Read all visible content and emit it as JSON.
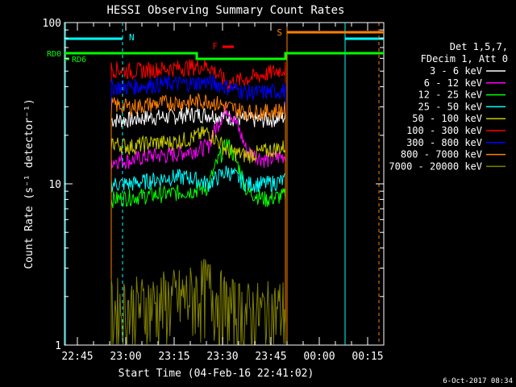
{
  "chart_data": {
    "type": "line",
    "title": "HESSI Observing Summary Count Rates",
    "xlabel": "Start Time (04-Feb-16 22:41:02)",
    "ylabel": "Count Rate (s⁻¹ detector⁻¹)",
    "yscale": "log",
    "ylim": [
      1,
      100
    ],
    "xlim_minutes_after_22h41": [
      0,
      99
    ],
    "xticks": [
      "22:45",
      "23:00",
      "23:15",
      "23:30",
      "23:45",
      "00:00",
      "00:15"
    ],
    "yticks": [
      "1",
      "10",
      "100"
    ],
    "footer": "6-Oct-2017 08:34",
    "legend": {
      "placement": "right",
      "header": [
        "Det 1,5,7,",
        "FDecim 1, Att 0"
      ]
    },
    "series": [
      {
        "name": "3 - 6 keV",
        "color": "#ffffff",
        "values": [
          25,
          25,
          26,
          26,
          27,
          27,
          26,
          25,
          25,
          26
        ]
      },
      {
        "name": "6 - 12 keV",
        "color": "#ff00ff",
        "values": [
          14,
          14,
          15,
          15,
          16,
          17,
          30,
          16,
          14,
          15
        ]
      },
      {
        "name": "12 - 25 keV",
        "color": "#00ff00",
        "values": [
          8,
          8.3,
          8.5,
          8.7,
          9,
          9.5,
          18,
          9,
          8,
          8.5
        ]
      },
      {
        "name": "25 - 50 keV",
        "color": "#00ffff",
        "values": [
          10,
          10,
          10.5,
          11,
          11,
          10,
          12,
          10,
          10,
          10.5
        ]
      },
      {
        "name": "50 - 100 keV",
        "color": "#c8c800",
        "values": [
          18,
          17,
          18,
          18,
          19,
          21,
          16,
          15,
          16,
          17
        ]
      },
      {
        "name": "100 - 300 keV",
        "color": "#ff0000",
        "values": [
          52,
          50,
          51,
          52,
          53,
          54,
          42,
          45,
          48,
          52
        ]
      },
      {
        "name": "300 - 800 keV",
        "color": "#0000ff",
        "values": [
          40,
          40,
          41,
          42,
          42,
          43,
          40,
          37,
          37,
          38
        ]
      },
      {
        "name": "800 - 7000 keV",
        "color": "#ff8000",
        "values": [
          31,
          30,
          31,
          32,
          32,
          33,
          30,
          28,
          28,
          29
        ]
      },
      {
        "name": "7000 - 20000 keV",
        "color": "#808000",
        "values": [
          1.7,
          1.7,
          1.8,
          1.9,
          2.0,
          2.3,
          1.7,
          1.6,
          1.6,
          1.7
        ]
      }
    ],
    "flags": [
      {
        "label": "N",
        "color": "#00ffff"
      },
      {
        "label": "F",
        "color": "#ff0000"
      },
      {
        "label": "S",
        "color": "#ff8000"
      },
      {
        "label": "RD0",
        "color": "#00ff00"
      },
      {
        "label": "RD6",
        "color": "#00ff00"
      }
    ]
  }
}
